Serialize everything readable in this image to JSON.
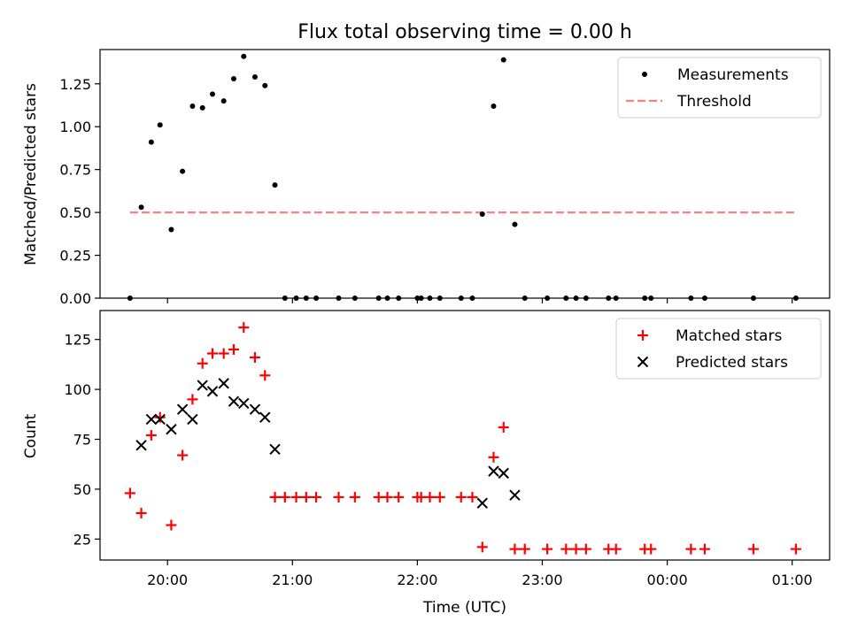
{
  "figure": {
    "title": "Flux total observing time = 0.00 h"
  },
  "chart_data": [
    {
      "type": "scatter",
      "ylabel": "Matched/Predicted stars",
      "xlabel": "",
      "xlim": [
        19.46,
        25.3
      ],
      "ylim": [
        0,
        1.45
      ],
      "yticks": [
        0.0,
        0.25,
        0.5,
        0.75,
        1.0,
        1.25
      ],
      "ytick_labels": [
        "0.00",
        "0.25",
        "0.50",
        "0.75",
        "1.00",
        "1.25"
      ],
      "xticks": [
        20,
        21,
        22,
        23,
        24,
        25
      ],
      "legend": {
        "placement": "top-right",
        "entries": [
          "Measurements",
          "Threshold"
        ]
      },
      "colors": {
        "measurements": "#000000",
        "threshold": "#ff7f7f"
      },
      "series": [
        {
          "name": "Measurements",
          "x": [
            19.7,
            19.79,
            19.87,
            19.94,
            20.03,
            20.12,
            20.2,
            20.28,
            20.36,
            20.45,
            20.53,
            20.61,
            20.7,
            20.78,
            20.86,
            20.94,
            21.03,
            21.11,
            21.19,
            21.37,
            21.5,
            21.69,
            21.76,
            21.85,
            22.0,
            22.03,
            22.1,
            22.18,
            22.35,
            22.44,
            22.52,
            22.61,
            22.69,
            22.78,
            22.86,
            23.04,
            23.19,
            23.27,
            23.35,
            23.53,
            23.59,
            23.82,
            23.87,
            24.19,
            24.3,
            24.69,
            25.03
          ],
          "y": [
            0.0,
            0.53,
            0.91,
            1.01,
            0.4,
            0.74,
            1.12,
            1.11,
            1.19,
            1.15,
            1.28,
            1.41,
            1.29,
            1.24,
            0.66,
            0.0,
            0.0,
            0.0,
            0.0,
            0.0,
            0.0,
            0.0,
            0.0,
            0.0,
            0.0,
            0.0,
            0.0,
            0.0,
            0.0,
            0.0,
            0.49,
            1.12,
            1.39,
            0.43,
            0.0,
            0.0,
            0.0,
            0.0,
            0.0,
            0.0,
            0.0,
            0.0,
            0.0,
            0.0,
            0.0,
            0.0,
            0.0
          ]
        },
        {
          "name": "Threshold",
          "x": [
            19.7,
            25.03
          ],
          "y": [
            0.5,
            0.5
          ]
        }
      ]
    },
    {
      "type": "scatter",
      "ylabel": "Count",
      "xlabel": "Time (UTC)",
      "xlim": [
        19.46,
        25.3
      ],
      "ylim": [
        14.5,
        139.5
      ],
      "yticks": [
        25,
        50,
        75,
        100,
        125
      ],
      "xticks": [
        20,
        21,
        22,
        23,
        24,
        25
      ],
      "xtick_labels": [
        "20:00",
        "21:00",
        "22:00",
        "23:00",
        "00:00",
        "01:00"
      ],
      "legend": {
        "placement": "top-right",
        "entries": [
          "Matched stars",
          "Predicted stars"
        ]
      },
      "colors": {
        "matched": "#ff0000",
        "predicted": "#000000"
      },
      "series": [
        {
          "name": "Matched stars",
          "x": [
            19.7,
            19.79,
            19.87,
            19.94,
            20.03,
            20.12,
            20.2,
            20.28,
            20.36,
            20.45,
            20.53,
            20.61,
            20.7,
            20.78,
            20.86,
            20.94,
            21.03,
            21.11,
            21.19,
            21.37,
            21.5,
            21.69,
            21.76,
            21.85,
            22.0,
            22.03,
            22.1,
            22.18,
            22.35,
            22.44,
            22.52,
            22.61,
            22.69,
            22.78,
            22.86,
            23.04,
            23.19,
            23.27,
            23.35,
            23.53,
            23.59,
            23.82,
            23.87,
            24.19,
            24.3,
            24.69,
            25.03
          ],
          "y": [
            48,
            38,
            77,
            86,
            32,
            67,
            95,
            113,
            118,
            118,
            120,
            131,
            116,
            107,
            46,
            46,
            46,
            46,
            46,
            46,
            46,
            46,
            46,
            46,
            46,
            46,
            46,
            46,
            46,
            46,
            21,
            66,
            81,
            20,
            20,
            20,
            20,
            20,
            20,
            20,
            20,
            20,
            20,
            20,
            20,
            20,
            20
          ]
        },
        {
          "name": "Predicted stars",
          "x": [
            19.79,
            19.87,
            19.94,
            20.03,
            20.12,
            20.2,
            20.28,
            20.36,
            20.45,
            20.53,
            20.61,
            20.7,
            20.78,
            20.86,
            22.52,
            22.61,
            22.69,
            22.78
          ],
          "y": [
            72,
            85,
            85,
            80,
            90,
            85,
            102,
            99,
            103,
            94,
            93,
            90,
            86,
            70,
            43,
            59,
            58,
            47
          ]
        }
      ]
    }
  ]
}
